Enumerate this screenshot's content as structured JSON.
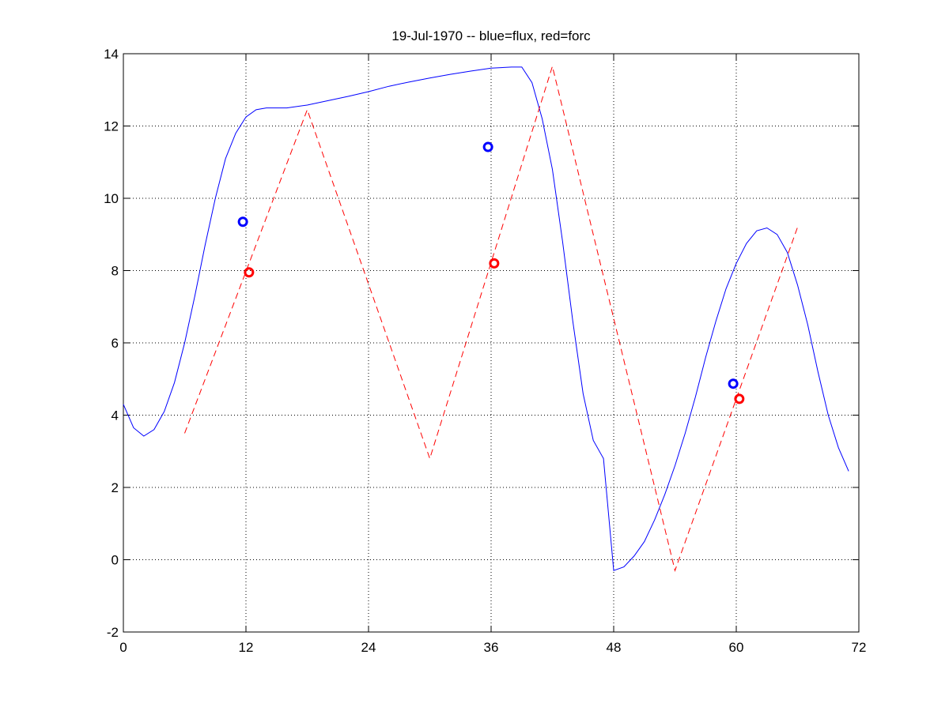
{
  "chart_data": {
    "type": "line",
    "title": "19-Jul-1970 -- blue=flux, red=forc",
    "xlabel": "",
    "ylabel": "",
    "xlim": [
      0,
      72
    ],
    "ylim": [
      -2,
      14
    ],
    "xticks": [
      0,
      12,
      24,
      36,
      48,
      60,
      72
    ],
    "yticks": [
      -2,
      0,
      2,
      4,
      6,
      8,
      10,
      12,
      14
    ],
    "grid": true,
    "series": [
      {
        "color": "#0000ff",
        "style": "solid",
        "points": [
          [
            0,
            4.3
          ],
          [
            1,
            3.65
          ],
          [
            2,
            3.42
          ],
          [
            3,
            3.6
          ],
          [
            4,
            4.1
          ],
          [
            5,
            4.9
          ],
          [
            6,
            6.0
          ],
          [
            7,
            7.3
          ],
          [
            8,
            8.7
          ],
          [
            9,
            10.0
          ],
          [
            10,
            11.1
          ],
          [
            11,
            11.8
          ],
          [
            12,
            12.25
          ],
          [
            13,
            12.45
          ],
          [
            14,
            12.5
          ],
          [
            16,
            12.5
          ],
          [
            18,
            12.58
          ],
          [
            20,
            12.7
          ],
          [
            22,
            12.82
          ],
          [
            24,
            12.95
          ],
          [
            26,
            13.1
          ],
          [
            28,
            13.22
          ],
          [
            30,
            13.33
          ],
          [
            32,
            13.43
          ],
          [
            34,
            13.52
          ],
          [
            36,
            13.6
          ],
          [
            38,
            13.63
          ],
          [
            39,
            13.63
          ],
          [
            40,
            13.2
          ],
          [
            41,
            12.2
          ],
          [
            42,
            10.8
          ],
          [
            43,
            8.8
          ],
          [
            44,
            6.6
          ],
          [
            45,
            4.6
          ],
          [
            46,
            3.3
          ],
          [
            47,
            2.8
          ],
          [
            48,
            -0.3
          ],
          [
            49,
            -0.2
          ],
          [
            50,
            0.1
          ],
          [
            51,
            0.5
          ],
          [
            52,
            1.1
          ],
          [
            53,
            1.8
          ],
          [
            54,
            2.6
          ],
          [
            55,
            3.5
          ],
          [
            56,
            4.5
          ],
          [
            57,
            5.6
          ],
          [
            58,
            6.6
          ],
          [
            59,
            7.5
          ],
          [
            60,
            8.2
          ],
          [
            61,
            8.75
          ],
          [
            62,
            9.1
          ],
          [
            63,
            9.18
          ],
          [
            64,
            9.0
          ],
          [
            65,
            8.5
          ],
          [
            66,
            7.6
          ],
          [
            67,
            6.5
          ],
          [
            68,
            5.2
          ],
          [
            69,
            4.0
          ],
          [
            70,
            3.1
          ],
          [
            71,
            2.45
          ]
        ]
      },
      {
        "color": "#ff0000",
        "style": "dashed",
        "points": [
          [
            6,
            3.5
          ],
          [
            18,
            12.45
          ],
          [
            30,
            2.8
          ],
          [
            42,
            13.65
          ],
          [
            54,
            -0.3
          ],
          [
            66,
            9.2
          ]
        ]
      }
    ],
    "markers": [
      {
        "color": "#0000ff",
        "x": 11.7,
        "y": 9.35
      },
      {
        "color": "#0000ff",
        "x": 35.7,
        "y": 11.42
      },
      {
        "color": "#0000ff",
        "x": 59.7,
        "y": 4.87
      },
      {
        "color": "#ff0000",
        "x": 12.3,
        "y": 7.95
      },
      {
        "color": "#ff0000",
        "x": 36.3,
        "y": 8.2
      },
      {
        "color": "#ff0000",
        "x": 60.3,
        "y": 4.45
      }
    ]
  }
}
